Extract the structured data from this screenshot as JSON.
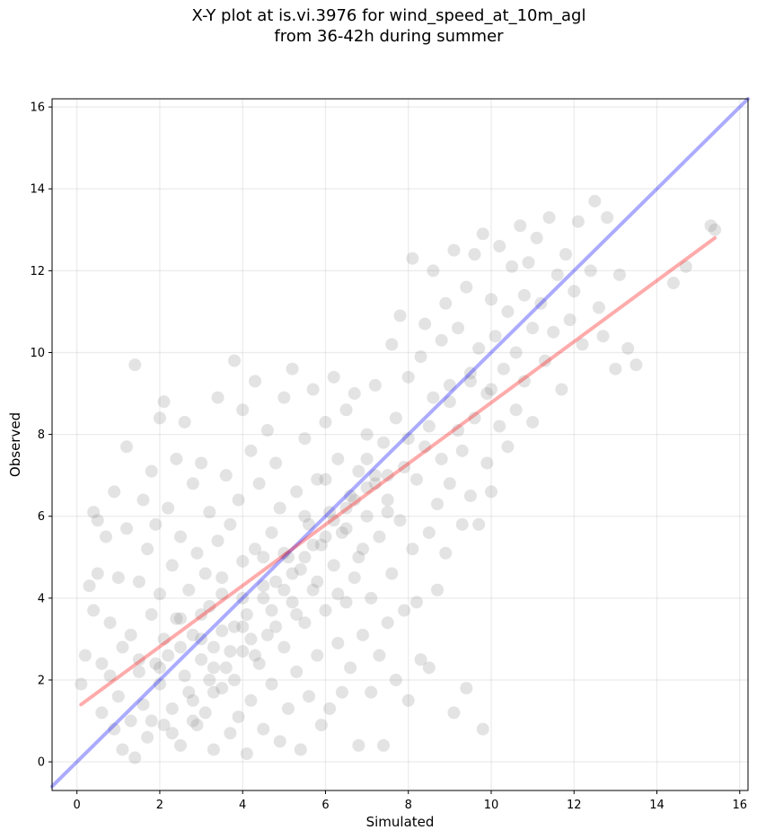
{
  "chart_data": {
    "type": "scatter",
    "title_line1": "X-Y plot at is.vi.3976 for wind_speed_at_10m_agl",
    "title_line2": "from 36-42h during summer",
    "xlabel": "Simulated",
    "ylabel": "Observed",
    "xlim": [
      -0.6,
      16.2
    ],
    "ylim": [
      -0.7,
      16.2
    ],
    "xticks": [
      "0",
      "2",
      "4",
      "6",
      "8",
      "10",
      "12",
      "14",
      "16"
    ],
    "yticks": [
      "0",
      "2",
      "4",
      "6",
      "8",
      "10",
      "12",
      "14",
      "16"
    ],
    "grid": true,
    "marker_color": "#808080",
    "marker_alpha": 0.22,
    "one_to_one_line": {
      "color": "#0000ff",
      "alpha": 0.33,
      "x": [
        -0.6,
        16.2
      ],
      "y": [
        -0.6,
        16.2
      ]
    },
    "fit_line": {
      "color": "#ff0000",
      "alpha": 0.33,
      "x": [
        0.1,
        15.4
      ],
      "y": [
        1.4,
        12.8
      ]
    },
    "points": [
      [
        0.1,
        1.9
      ],
      [
        0.2,
        2.6
      ],
      [
        0.3,
        4.3
      ],
      [
        0.4,
        3.7
      ],
      [
        0.4,
        6.1
      ],
      [
        0.5,
        4.6
      ],
      [
        0.5,
        5.9
      ],
      [
        0.6,
        2.4
      ],
      [
        0.6,
        1.2
      ],
      [
        0.7,
        5.5
      ],
      [
        0.8,
        2.1
      ],
      [
        0.8,
        3.4
      ],
      [
        0.9,
        0.8
      ],
      [
        0.9,
        6.6
      ],
      [
        1.0,
        4.5
      ],
      [
        1.0,
        1.6
      ],
      [
        1.1,
        0.3
      ],
      [
        1.1,
        2.8
      ],
      [
        1.2,
        5.7
      ],
      [
        1.2,
        7.7
      ],
      [
        1.3,
        1.0
      ],
      [
        1.3,
        3.1
      ],
      [
        1.4,
        9.7
      ],
      [
        1.4,
        0.1
      ],
      [
        1.5,
        4.4
      ],
      [
        1.5,
        2.2
      ],
      [
        1.6,
        6.4
      ],
      [
        1.6,
        1.4
      ],
      [
        1.7,
        5.2
      ],
      [
        1.7,
        0.6
      ],
      [
        1.8,
        3.6
      ],
      [
        1.8,
        7.1
      ],
      [
        1.9,
        2.4
      ],
      [
        1.9,
        5.8
      ],
      [
        2.0,
        8.4
      ],
      [
        2.0,
        1.9
      ],
      [
        2.0,
        4.1
      ],
      [
        2.1,
        8.8
      ],
      [
        2.1,
        0.9
      ],
      [
        2.1,
        3.0
      ],
      [
        2.2,
        6.2
      ],
      [
        2.2,
        2.6
      ],
      [
        2.3,
        4.8
      ],
      [
        2.3,
        1.3
      ],
      [
        2.4,
        7.4
      ],
      [
        2.4,
        3.5
      ],
      [
        2.5,
        0.4
      ],
      [
        2.5,
        5.5
      ],
      [
        2.6,
        2.1
      ],
      [
        2.6,
        8.3
      ],
      [
        2.7,
        4.2
      ],
      [
        2.7,
        1.7
      ],
      [
        2.8,
        6.8
      ],
      [
        2.8,
        3.1
      ],
      [
        2.9,
        0.9
      ],
      [
        2.9,
        5.1
      ],
      [
        3.0,
        2.5
      ],
      [
        3.0,
        7.3
      ],
      [
        3.1,
        4.6
      ],
      [
        3.1,
        1.2
      ],
      [
        3.2,
        3.8
      ],
      [
        3.2,
        6.1
      ],
      [
        3.3,
        0.3
      ],
      [
        3.3,
        2.8
      ],
      [
        3.4,
        5.4
      ],
      [
        3.4,
        8.9
      ],
      [
        3.5,
        1.8
      ],
      [
        3.5,
        4.1
      ],
      [
        3.6,
        7.0
      ],
      [
        3.6,
        2.3
      ],
      [
        3.7,
        0.7
      ],
      [
        3.7,
        5.8
      ],
      [
        3.8,
        3.3
      ],
      [
        3.8,
        9.8
      ],
      [
        3.9,
        1.1
      ],
      [
        3.9,
        6.4
      ],
      [
        4.0,
        2.7
      ],
      [
        4.0,
        4.9
      ],
      [
        4.0,
        8.6
      ],
      [
        4.1,
        0.2
      ],
      [
        4.1,
        3.6
      ],
      [
        4.2,
        7.6
      ],
      [
        4.2,
        1.5
      ],
      [
        4.3,
        5.2
      ],
      [
        4.3,
        9.3
      ],
      [
        4.4,
        2.4
      ],
      [
        4.4,
        6.8
      ],
      [
        4.5,
        0.8
      ],
      [
        4.5,
        4.0
      ],
      [
        4.6,
        8.1
      ],
      [
        4.6,
        3.1
      ],
      [
        4.7,
        5.6
      ],
      [
        4.7,
        1.9
      ],
      [
        4.8,
        7.3
      ],
      [
        4.8,
        4.4
      ],
      [
        4.9,
        0.5
      ],
      [
        4.9,
        6.2
      ],
      [
        5.0,
        2.8
      ],
      [
        5.0,
        8.9
      ],
      [
        5.1,
        5.0
      ],
      [
        5.1,
        1.3
      ],
      [
        5.2,
        3.9
      ],
      [
        5.2,
        9.6
      ],
      [
        5.3,
        6.6
      ],
      [
        5.3,
        2.2
      ],
      [
        5.4,
        4.7
      ],
      [
        5.4,
        0.3
      ],
      [
        5.5,
        7.9
      ],
      [
        5.5,
        3.4
      ],
      [
        5.6,
        5.8
      ],
      [
        5.6,
        1.6
      ],
      [
        5.7,
        9.1
      ],
      [
        5.7,
        4.2
      ],
      [
        5.8,
        6.9
      ],
      [
        5.8,
        2.6
      ],
      [
        5.9,
        0.9
      ],
      [
        5.9,
        5.3
      ],
      [
        6.0,
        8.3
      ],
      [
        6.0,
        3.7
      ],
      [
        6.1,
        6.1
      ],
      [
        6.1,
        1.3
      ],
      [
        6.2,
        4.8
      ],
      [
        6.2,
        9.4
      ],
      [
        6.3,
        2.9
      ],
      [
        6.3,
        7.4
      ],
      [
        6.4,
        5.6
      ],
      [
        6.4,
        1.7
      ],
      [
        6.5,
        8.6
      ],
      [
        6.5,
        3.9
      ],
      [
        6.6,
        6.5
      ],
      [
        6.6,
        2.3
      ],
      [
        6.7,
        9.0
      ],
      [
        6.7,
        4.5
      ],
      [
        6.8,
        7.1
      ],
      [
        6.8,
        0.4
      ],
      [
        6.9,
        5.2
      ],
      [
        6.9,
        3.1
      ],
      [
        7.0,
        8.0
      ],
      [
        7.0,
        6.0
      ],
      [
        7.1,
        1.7
      ],
      [
        7.1,
        4.0
      ],
      [
        7.2,
        9.2
      ],
      [
        7.2,
        6.8
      ],
      [
        7.3,
        2.6
      ],
      [
        7.3,
        5.5
      ],
      [
        7.4,
        7.8
      ],
      [
        7.4,
        0.4
      ],
      [
        7.5,
        3.4
      ],
      [
        7.5,
        6.4
      ],
      [
        7.6,
        10.2
      ],
      [
        7.6,
        4.6
      ],
      [
        7.7,
        8.4
      ],
      [
        7.7,
        2.0
      ],
      [
        7.8,
        5.9
      ],
      [
        7.8,
        10.9
      ],
      [
        7.9,
        3.7
      ],
      [
        7.9,
        7.2
      ],
      [
        8.0,
        9.4
      ],
      [
        8.0,
        1.5
      ],
      [
        8.1,
        5.2
      ],
      [
        8.1,
        12.3
      ],
      [
        8.2,
        6.9
      ],
      [
        8.2,
        3.9
      ],
      [
        8.3,
        9.9
      ],
      [
        8.3,
        2.5
      ],
      [
        8.4,
        7.7
      ],
      [
        8.4,
        10.7
      ],
      [
        8.5,
        5.6
      ],
      [
        8.5,
        2.3
      ],
      [
        8.6,
        8.9
      ],
      [
        8.6,
        12.0
      ],
      [
        8.7,
        6.3
      ],
      [
        8.7,
        4.2
      ],
      [
        8.8,
        10.3
      ],
      [
        8.8,
        7.4
      ],
      [
        8.9,
        11.2
      ],
      [
        8.9,
        5.1
      ],
      [
        9.0,
        9.2
      ],
      [
        9.0,
        6.8
      ],
      [
        9.1,
        12.5
      ],
      [
        9.1,
        1.2
      ],
      [
        9.2,
        8.1
      ],
      [
        9.2,
        10.6
      ],
      [
        9.3,
        5.8
      ],
      [
        9.3,
        7.6
      ],
      [
        9.4,
        11.6
      ],
      [
        9.4,
        1.8
      ],
      [
        9.5,
        9.5
      ],
      [
        9.5,
        6.5
      ],
      [
        9.6,
        12.4
      ],
      [
        9.6,
        8.4
      ],
      [
        9.7,
        10.1
      ],
      [
        9.7,
        5.8
      ],
      [
        9.8,
        12.9
      ],
      [
        9.8,
        0.8
      ],
      [
        9.9,
        9.0
      ],
      [
        9.9,
        7.3
      ],
      [
        10.0,
        11.3
      ],
      [
        10.0,
        6.6
      ],
      [
        10.1,
        10.4
      ],
      [
        10.2,
        8.2
      ],
      [
        10.2,
        12.6
      ],
      [
        10.3,
        9.6
      ],
      [
        10.4,
        11.0
      ],
      [
        10.4,
        7.7
      ],
      [
        10.5,
        12.1
      ],
      [
        10.6,
        10.0
      ],
      [
        10.6,
        8.6
      ],
      [
        10.7,
        13.1
      ],
      [
        10.8,
        11.4
      ],
      [
        10.8,
        9.3
      ],
      [
        10.9,
        12.2
      ],
      [
        11.0,
        10.6
      ],
      [
        11.0,
        8.3
      ],
      [
        11.1,
        12.8
      ],
      [
        11.2,
        11.2
      ],
      [
        11.3,
        9.8
      ],
      [
        11.4,
        13.3
      ],
      [
        11.5,
        10.5
      ],
      [
        11.6,
        11.9
      ],
      [
        11.7,
        9.1
      ],
      [
        11.8,
        12.4
      ],
      [
        11.9,
        10.8
      ],
      [
        12.0,
        11.5
      ],
      [
        12.1,
        13.2
      ],
      [
        12.2,
        10.2
      ],
      [
        12.4,
        12.0
      ],
      [
        12.5,
        13.7
      ],
      [
        12.6,
        11.1
      ],
      [
        12.7,
        10.4
      ],
      [
        12.8,
        13.3
      ],
      [
        13.0,
        9.6
      ],
      [
        13.1,
        11.9
      ],
      [
        13.3,
        10.1
      ],
      [
        13.5,
        9.7
      ],
      [
        14.4,
        11.7
      ],
      [
        14.7,
        12.1
      ],
      [
        15.3,
        13.1
      ],
      [
        15.4,
        13.0
      ],
      [
        2.5,
        2.8
      ],
      [
        3.0,
        3.0
      ],
      [
        3.5,
        3.2
      ],
      [
        4.0,
        4.0
      ],
      [
        4.5,
        4.3
      ],
      [
        5.0,
        5.1
      ],
      [
        5.5,
        5.0
      ],
      [
        6.0,
        5.5
      ],
      [
        6.5,
        6.2
      ],
      [
        7.0,
        6.7
      ],
      [
        7.5,
        7.0
      ],
      [
        1.5,
        2.5
      ],
      [
        2.0,
        2.3
      ],
      [
        2.5,
        3.5
      ],
      [
        3.0,
        3.6
      ],
      [
        3.5,
        4.5
      ],
      [
        4.0,
        3.3
      ],
      [
        4.5,
        5.0
      ],
      [
        5.0,
        4.2
      ],
      [
        5.5,
        6.0
      ],
      [
        6.0,
        6.9
      ],
      [
        6.5,
        5.7
      ],
      [
        7.0,
        7.4
      ],
      [
        7.5,
        6.1
      ],
      [
        8.0,
        7.9
      ],
      [
        8.5,
        8.2
      ],
      [
        9.0,
        8.8
      ],
      [
        9.5,
        9.3
      ],
      [
        10.0,
        9.1
      ],
      [
        3.2,
        2.0
      ],
      [
        3.7,
        2.7
      ],
      [
        4.2,
        3.0
      ],
      [
        4.7,
        3.7
      ],
      [
        5.2,
        4.6
      ],
      [
        5.7,
        5.3
      ],
      [
        6.2,
        5.9
      ],
      [
        6.7,
        6.4
      ],
      [
        7.2,
        7.0
      ],
      [
        2.8,
        1.5
      ],
      [
        3.3,
        2.3
      ],
      [
        3.8,
        2.0
      ],
      [
        4.3,
        2.6
      ],
      [
        4.8,
        3.3
      ],
      [
        5.3,
        3.6
      ],
      [
        5.8,
        4.4
      ],
      [
        6.3,
        4.1
      ],
      [
        6.8,
        5.0
      ],
      [
        1.8,
        1.0
      ],
      [
        2.3,
        0.7
      ],
      [
        2.8,
        1.0
      ],
      [
        3.3,
        1.7
      ]
    ]
  }
}
